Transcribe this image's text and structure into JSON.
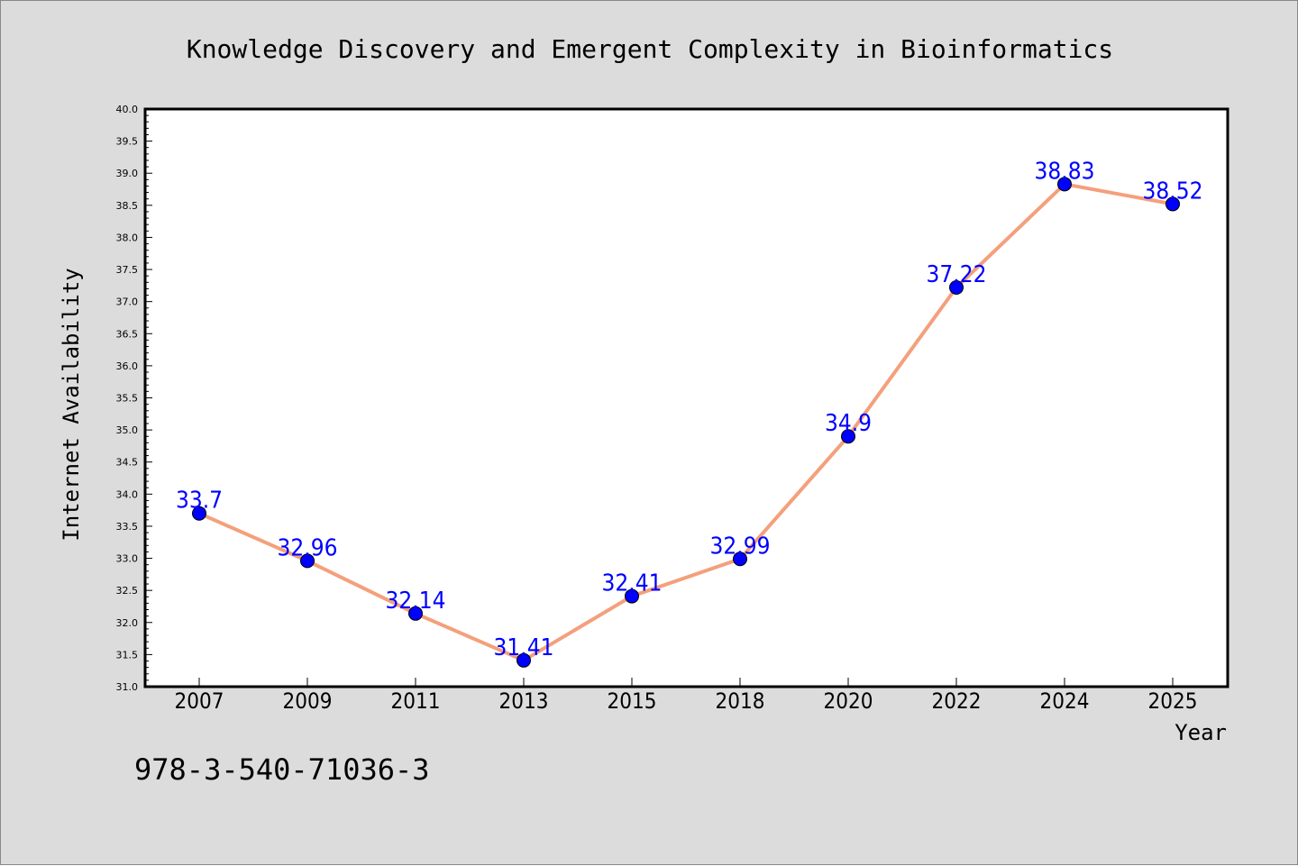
{
  "colors": {
    "background": "#dcdcdc",
    "plot_background": "#ffffff",
    "line": "#f4a07c",
    "marker": "#0000ff",
    "label": "#0000ff",
    "axis": "#000000"
  },
  "chart_data": {
    "type": "line",
    "title": "Knowledge Discovery and Emergent Complexity in Bioinformatics",
    "xlabel": "Year",
    "ylabel": "Internet Availability",
    "footer_text": "978-3-540-71036-3",
    "categories": [
      "2007",
      "2009",
      "2011",
      "2013",
      "2015",
      "2018",
      "2020",
      "2022",
      "2024",
      "2025"
    ],
    "series": [
      {
        "values": [
          33.7,
          32.96,
          32.14,
          31.41,
          32.41,
          32.99,
          34.9,
          37.22,
          38.83,
          38.52
        ],
        "data_labels": [
          "33.7",
          "32.96",
          "32.14",
          "31.41",
          "32.41",
          "32.99",
          "34.9",
          "37.22",
          "38.83",
          "38.52"
        ]
      }
    ],
    "ylim": [
      31.0,
      40.0
    ],
    "y_ticks": [
      "31.0",
      "31.5",
      "32.0",
      "32.5",
      "33.0",
      "33.5",
      "34.0",
      "34.5",
      "35.0",
      "35.5",
      "36.0",
      "36.5",
      "37.0",
      "37.5",
      "38.0",
      "38.5",
      "39.0",
      "39.5",
      "40.0"
    ],
    "grid": false,
    "legend": false
  }
}
